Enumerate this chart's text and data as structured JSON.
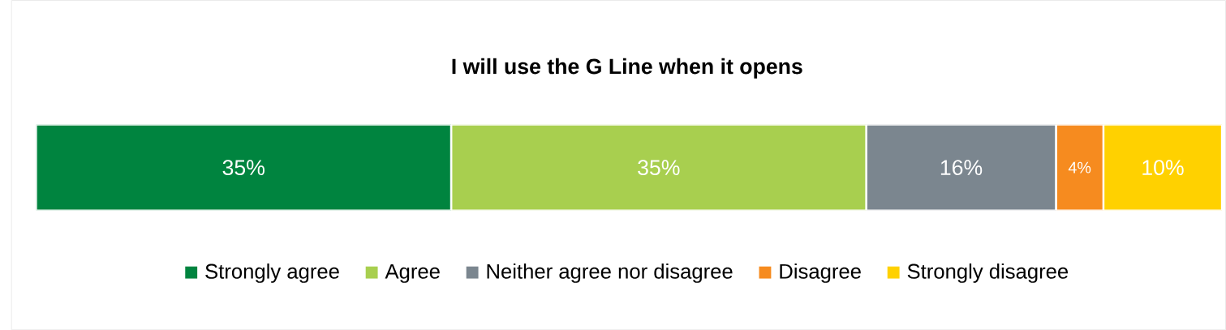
{
  "chart_data": {
    "type": "bar",
    "orientation": "horizontal",
    "stacked": true,
    "title": "I will use the G Line when it opens",
    "categories": [
      null
    ],
    "legend": "bottom",
    "series": [
      {
        "name": "Strongly agree",
        "color": "#00843f",
        "values": [
          35
        ],
        "value_labels": [
          "35%"
        ]
      },
      {
        "name": "Agree",
        "color": "#a8cf4f",
        "values": [
          35
        ],
        "value_labels": [
          "35%"
        ]
      },
      {
        "name": "Neither agree nor disagree",
        "color": "#7b868f",
        "values": [
          16
        ],
        "value_labels": [
          "16%"
        ]
      },
      {
        "name": "Disagree",
        "color": "#f68b1f",
        "values": [
          4
        ],
        "value_labels": [
          "4%"
        ]
      },
      {
        "name": "Strongly disagree",
        "color": "#ffd100",
        "values": [
          10
        ],
        "value_labels": [
          "10%"
        ]
      }
    ]
  }
}
